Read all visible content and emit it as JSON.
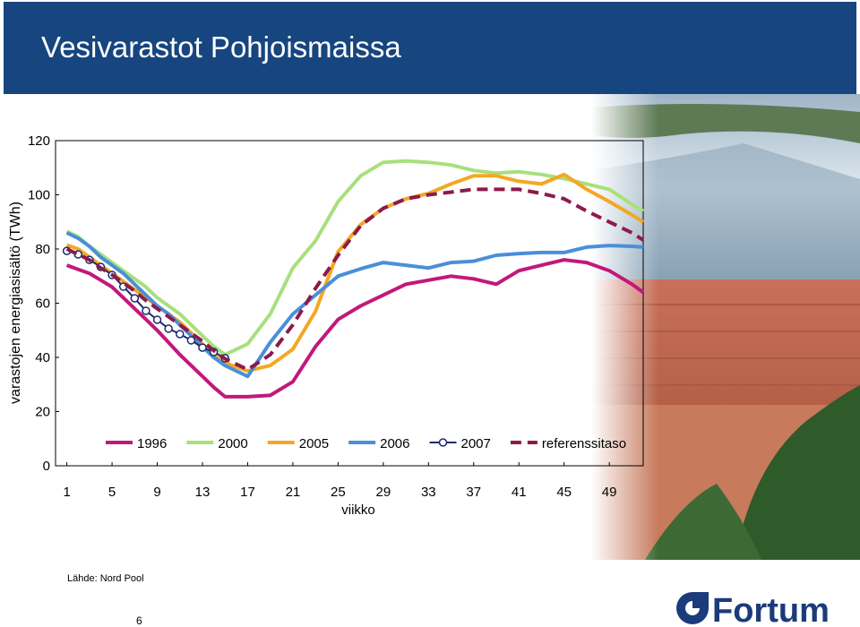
{
  "slide": {
    "title": "Vesivarastot Pohjoismaissa",
    "source": "Lähde: Nord Pool",
    "page": "6",
    "logo": "Fortum"
  },
  "chart_data": {
    "type": "line",
    "y_label": "varastojen energiasisältö (TWh)",
    "x_label": "viikko",
    "x": [
      1,
      2,
      3,
      4,
      5,
      6,
      7,
      8,
      9,
      10,
      11,
      12,
      13,
      14,
      15,
      17,
      19,
      21,
      23,
      25,
      27,
      29,
      31,
      33,
      35,
      37,
      39,
      41,
      43,
      45,
      47,
      49,
      51,
      52
    ],
    "xlim": [
      0,
      52
    ],
    "xticks": [
      1,
      5,
      9,
      13,
      17,
      21,
      25,
      29,
      33,
      37,
      41,
      45,
      49
    ],
    "ylim": [
      0,
      120
    ],
    "yticks": [
      0,
      20,
      40,
      60,
      80,
      100,
      120
    ],
    "grid": false,
    "legend": "lower center",
    "series": [
      {
        "name": "1996",
        "color": "#c2187c",
        "values": [
          74,
          72.5,
          71,
          68.5,
          66,
          62,
          58,
          54,
          50,
          45.5,
          41,
          37,
          33,
          29,
          25.5,
          25.5,
          26,
          31,
          44,
          54,
          59,
          63,
          67,
          68.5,
          70,
          69,
          67,
          72,
          74,
          76,
          75,
          72,
          67,
          64
        ]
      },
      {
        "name": "2000",
        "color": "#a8e07c",
        "values": [
          86.5,
          84.5,
          81,
          78,
          75,
          72,
          69,
          66,
          62,
          59,
          56,
          52,
          48,
          44,
          41,
          45,
          56,
          73,
          83,
          97.5,
          107,
          112,
          112.5,
          112,
          111,
          109,
          108,
          108.5,
          107.5,
          106,
          104,
          102,
          96.5,
          94
        ]
      },
      {
        "name": "2005",
        "color": "#f2a824",
        "values": [
          81.5,
          80,
          77,
          74,
          71,
          68,
          65,
          62,
          59,
          56,
          53,
          49,
          45,
          41,
          38,
          35,
          37,
          43,
          57,
          79,
          89,
          95,
          98.5,
          100.5,
          104,
          107,
          107,
          105,
          104,
          107.5,
          102,
          97.5,
          92.6,
          90
        ]
      },
      {
        "name": "2006",
        "color": "#4a8fd8",
        "values": [
          86,
          84,
          81,
          77,
          74,
          71,
          67,
          63,
          59,
          56,
          52,
          48,
          44,
          40,
          37,
          33,
          45.6,
          56,
          63,
          70,
          72.7,
          75,
          74,
          73,
          75,
          75.5,
          77.7,
          78.3,
          78.7,
          78.7,
          80.7,
          81.3,
          81,
          80.7
        ]
      },
      {
        "name": "2007",
        "color": "#1b2b6e",
        "markers": true,
        "values": [
          79.3,
          78,
          76,
          73.4,
          70.4,
          66.1,
          61.8,
          57.2,
          53.9,
          50.6,
          48.6,
          46.3,
          43.6,
          42,
          39.7,
          null,
          null,
          null,
          null,
          null,
          null,
          null,
          null,
          null,
          null,
          null,
          null,
          null,
          null,
          null,
          null,
          null,
          null,
          null
        ]
      },
      {
        "name": "referenssitaso",
        "color": "#8c1a4c",
        "dashed": true,
        "values": [
          80,
          78,
          76,
          73,
          70.5,
          67.5,
          64.5,
          61,
          58,
          55,
          52,
          49,
          46,
          42.5,
          39.5,
          35.5,
          41,
          52,
          65.5,
          77.7,
          88.6,
          95,
          98.5,
          100,
          101,
          102,
          102,
          102,
          100.5,
          98.5,
          94,
          90,
          86,
          83.3
        ]
      }
    ]
  }
}
